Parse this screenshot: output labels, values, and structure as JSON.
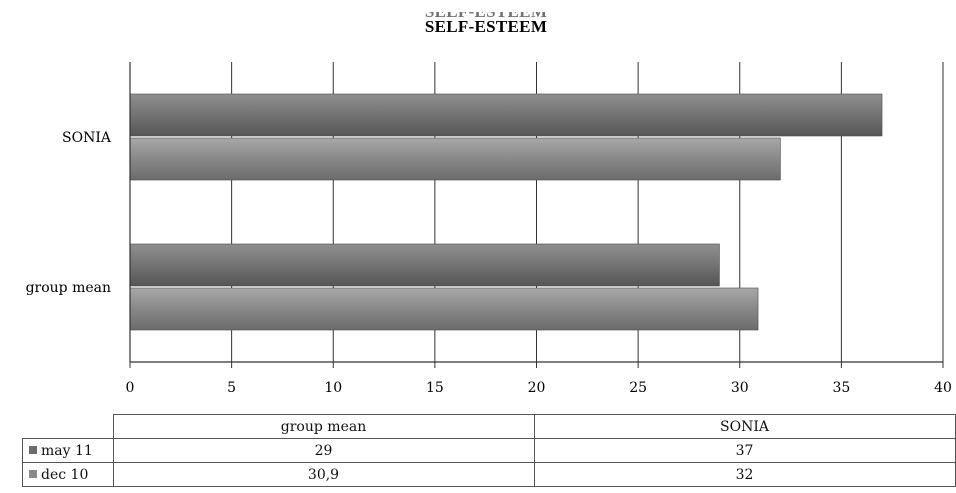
{
  "chart_data": {
    "type": "bar",
    "orientation": "horizontal",
    "title": "SELF-ESTEEM",
    "categories": [
      "group mean",
      "SONIA"
    ],
    "series": [
      {
        "name": "may 11",
        "values": [
          29,
          37
        ],
        "display": [
          "29",
          "37"
        ],
        "color": "#6b6b6b"
      },
      {
        "name": "dec 10",
        "values": [
          30.9,
          32
        ],
        "display": [
          "30,9",
          "32"
        ],
        "color": "#8a8a8a"
      }
    ],
    "xlim": [
      0,
      40
    ],
    "xticks": [
      0,
      5,
      10,
      15,
      20,
      25,
      30,
      35,
      40
    ],
    "grid": true,
    "data_table": true
  }
}
